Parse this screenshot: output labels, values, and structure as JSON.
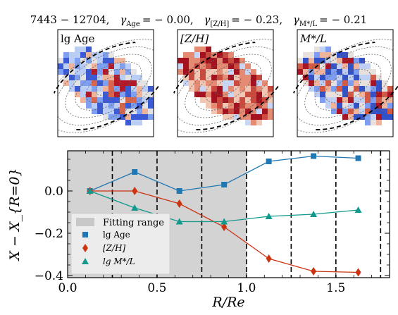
{
  "title": "7443 − 12704,  γ_Age = − 0.00,  γ_[Z/H] = − 0.23,  γ_M*/L = − 0.21",
  "title_parts": {
    "galaxy_id": "7443 − 12704,",
    "g1_label": "γ",
    "g1_sub": "Age",
    "g1_value": "= − 0.00,",
    "g2_label": "γ",
    "g2_sub": "[Z/H]",
    "g2_value": "= − 0.23,",
    "g3_label": "γ",
    "g3_sub": "M*/L",
    "g3_value": "= − 0.21"
  },
  "maps": [
    {
      "label": "lg Age"
    },
    {
      "label": "[Z/H]"
    },
    {
      "label": "M*/L"
    }
  ],
  "chart_data": {
    "type": "line",
    "xlabel": "R/Re",
    "ylabel": "X − X_{R=0}",
    "xlim": [
      0.0,
      1.8
    ],
    "ylim": [
      -0.41,
      0.19
    ],
    "xticks": [
      0.0,
      0.5,
      1.0,
      1.5
    ],
    "xtick_labels": [
      "0.0",
      "0.5",
      "1.0",
      "1.5"
    ],
    "yticks": [
      -0.4,
      -0.2,
      0.0
    ],
    "ytick_labels": [
      "−0.4",
      "−0.2",
      "0.0"
    ],
    "fitting_range": [
      0.0,
      1.0
    ],
    "vlines": [
      0.25,
      0.5,
      0.75,
      1.0,
      1.25,
      1.5,
      1.75
    ],
    "x": [
      0.125,
      0.375,
      0.625,
      0.875,
      1.125,
      1.375,
      1.625
    ],
    "series": [
      {
        "name": "lg Age",
        "color": "#1f77b4",
        "marker": "square",
        "values": [
          0.0,
          0.09,
          0.0,
          0.03,
          0.14,
          0.165,
          0.155
        ]
      },
      {
        "name": "[Z/H]",
        "color": "#cc3311",
        "marker": "diamond",
        "values": [
          0.0,
          0.0,
          -0.06,
          -0.17,
          -0.32,
          -0.38,
          -0.385
        ]
      },
      {
        "name": "lg M*/L",
        "color": "#11998e",
        "marker": "triangle",
        "values": [
          0.0,
          -0.08,
          -0.145,
          -0.145,
          -0.12,
          -0.11,
          -0.09
        ]
      }
    ],
    "legend": {
      "placement": "lower-left",
      "fitting_label": "Fitting range",
      "entries": [
        "lg Age",
        "[Z/H]",
        "lg M*/L"
      ]
    },
    "grid": false
  }
}
